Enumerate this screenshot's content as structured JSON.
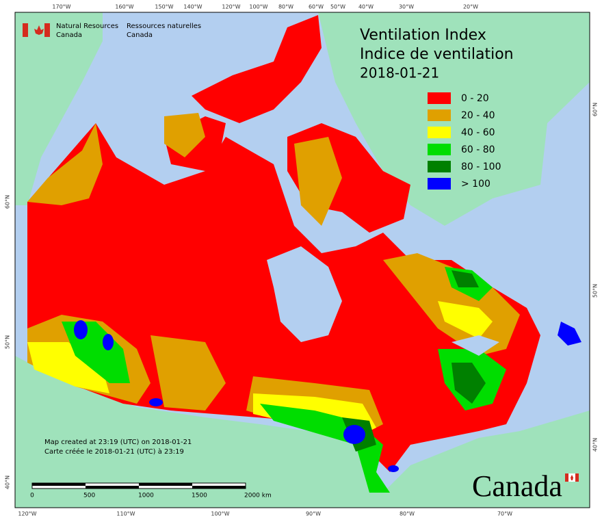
{
  "header": {
    "agency_en": [
      "Natural Resources",
      "Canada"
    ],
    "agency_fr": [
      "Ressources naturelles",
      "Canada"
    ]
  },
  "title": [
    "Ventilation Index",
    "Indice de ventilation",
    "2018-01-21"
  ],
  "legend": [
    {
      "label": "0 - 20",
      "color": "#ff0000"
    },
    {
      "label": "20 - 40",
      "color": "#e0a000"
    },
    {
      "label": "40 - 60",
      "color": "#ffff00"
    },
    {
      "label": "60 - 80",
      "color": "#00dd00"
    },
    {
      "label": "80 - 100",
      "color": "#008000"
    },
    {
      "label": "> 100",
      "color": "#0000ff"
    }
  ],
  "graticule": {
    "top": [
      "170°W",
      "160°W",
      "150°W",
      "140°W",
      "120°W",
      "100°W",
      "80°W",
      "60°W",
      "50°W",
      "40°W",
      "30°W",
      "20°W"
    ],
    "bottom": [
      "120°W",
      "110°W",
      "100°W",
      "90°W",
      "80°W",
      "70°W"
    ],
    "left": [
      "60°N",
      "50°N",
      "40°N"
    ],
    "right": [
      "60°N",
      "50°N",
      "40°N"
    ]
  },
  "footer": {
    "created_en": "Map created at 23:19 (UTC) on 2018-01-21",
    "created_fr": "Carte créée le 2018-01-21 (UTC) à 23:19"
  },
  "scale_bar": {
    "labels": [
      "0",
      "500",
      "1000",
      "1500",
      "2000 km"
    ]
  },
  "wordmark": "Canada"
}
